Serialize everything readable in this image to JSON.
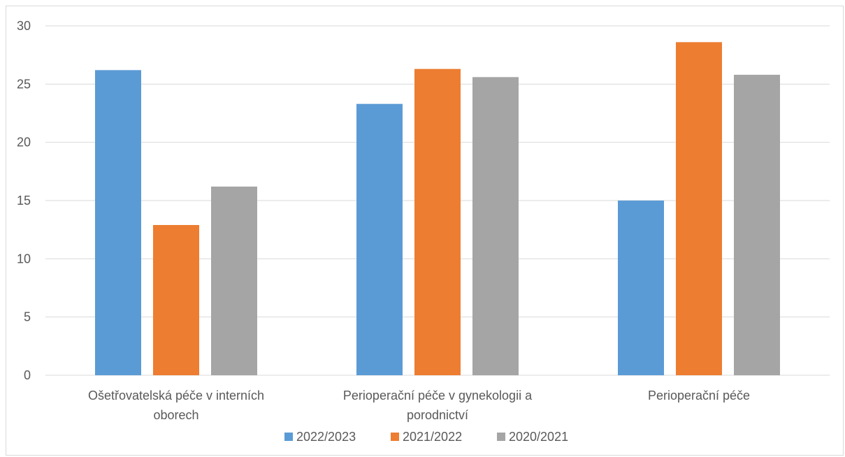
{
  "chart_data": {
    "type": "bar",
    "categories": [
      [
        "Ošetřovatelská péče v interních",
        "oborech"
      ],
      [
        "Perioperační péče v gynekologii a",
        "porodnictví"
      ],
      [
        "Perioperační péče"
      ]
    ],
    "series": [
      {
        "name": "2022/2023",
        "color": "#5b9bd5",
        "values": [
          26.2,
          23.3,
          15.0
        ]
      },
      {
        "name": "2021/2022",
        "color": "#ed7d31",
        "values": [
          12.9,
          26.3,
          28.6
        ]
      },
      {
        "name": "2020/2021",
        "color": "#a5a5a5",
        "values": [
          16.2,
          25.6,
          25.8
        ]
      }
    ],
    "yticks": [
      "0",
      "5",
      "10",
      "15",
      "20",
      "25",
      "30"
    ],
    "ylim": [
      0,
      30
    ],
    "grid": true,
    "legend_position": "bottom",
    "title": "",
    "xlabel": "",
    "ylabel": ""
  }
}
